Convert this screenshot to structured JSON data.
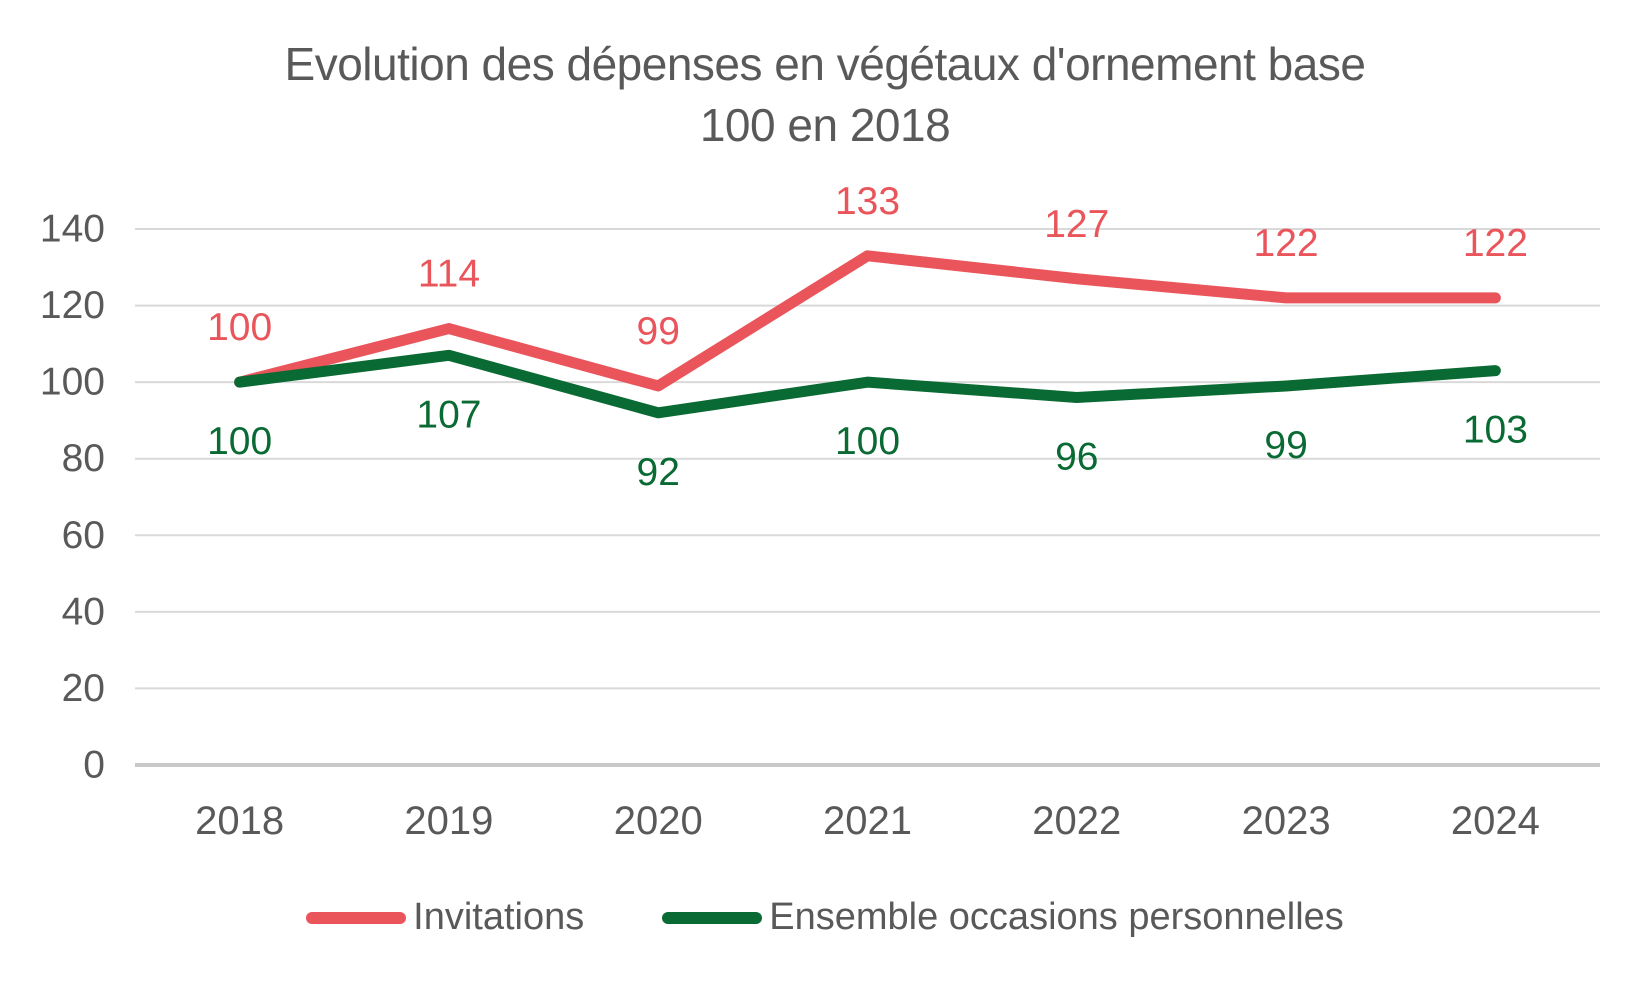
{
  "chart_data": {
    "type": "line",
    "title": "Evolution des dépenses en végétaux d'ornement base 100 en 2018",
    "title_lines": [
      "Evolution des dépenses en végétaux d'ornement base",
      "100 en 2018"
    ],
    "categories": [
      "2018",
      "2019",
      "2020",
      "2021",
      "2022",
      "2023",
      "2024"
    ],
    "series": [
      {
        "name": "Invitations",
        "slug": "invitations",
        "values": [
          100,
          114,
          99,
          133,
          127,
          122,
          122
        ],
        "color": "#E9555B",
        "label_position": "above"
      },
      {
        "name": "Ensemble occasions personnelles",
        "slug": "ensemble-occasions-personnelles",
        "values": [
          100,
          107,
          92,
          100,
          96,
          99,
          103
        ],
        "color": "#0A6A33",
        "label_position": "below"
      }
    ],
    "ylim": [
      0,
      140
    ],
    "yticks": [
      0,
      20,
      40,
      60,
      80,
      100,
      120,
      140
    ],
    "grid": true,
    "legend_position": "bottom",
    "colors": {
      "title_text": "#595959",
      "axis_text": "#595959",
      "gridline": "#D9D9D9",
      "axis_line": "#C9C9C9",
      "background": "#FFFFFF"
    }
  }
}
